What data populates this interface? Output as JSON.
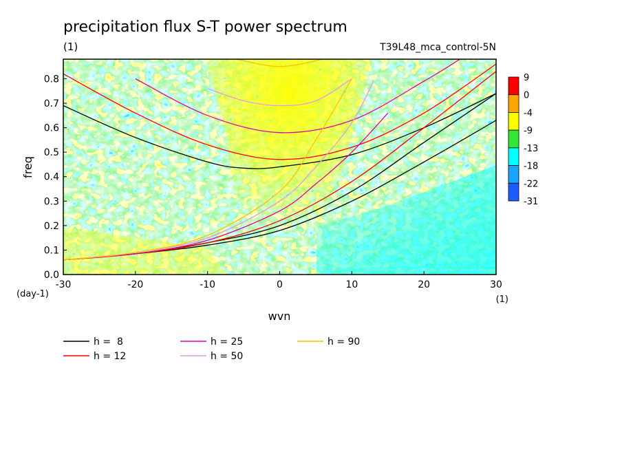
{
  "chart_data": {
    "type": "heatmap",
    "title": "precipitation flux S-T power spectrum",
    "units_label": "(1)",
    "subtitle": "T39L48_mca_control-5N",
    "xlabel": "wvn",
    "ylabel": "freq",
    "x_unit_label": "(1)",
    "y_unit_label": "(day-1)",
    "xlim": [
      -30,
      30
    ],
    "ylim": [
      0,
      0.88
    ],
    "xticks": [
      "-30",
      "-20",
      "-10",
      "0",
      "10",
      "20",
      "30"
    ],
    "yticks": [
      "0.0",
      "0.1",
      "0.2",
      "0.3",
      "0.4",
      "0.5",
      "0.6",
      "0.7",
      "0.8"
    ],
    "colorbar": {
      "labels": [
        "9",
        "0",
        "-4",
        "-9",
        "-13",
        "-18",
        "-22",
        "-31"
      ],
      "colors": [
        "#ff0000",
        "#ffa500",
        "#ffff00",
        "#33e633",
        "#00ffff",
        "#1aa3ff",
        "#1a5cff"
      ]
    },
    "legend": [
      {
        "label": "h =  8",
        "color": "#000000"
      },
      {
        "label": "h = 12",
        "color": "#ff0000"
      },
      {
        "label": "h = 25",
        "color": "#e000a0"
      },
      {
        "label": "h = 50",
        "color": "#d8a0e0"
      },
      {
        "label": "h = 90",
        "color": "#ffc000"
      }
    ],
    "dispersion_curves": [
      {
        "name": "h =  8",
        "color": "#000000",
        "branch": "low",
        "x": [
          -30,
          -20,
          -10,
          0,
          10,
          20,
          30
        ],
        "y": [
          0.06,
          0.085,
          0.12,
          0.18,
          0.3,
          0.46,
          0.63
        ]
      },
      {
        "name": "h =  8",
        "color": "#000000",
        "branch": "mid",
        "x": [
          -30,
          -20,
          -10,
          0,
          10,
          20,
          30
        ],
        "y": [
          0.06,
          0.085,
          0.13,
          0.2,
          0.34,
          0.54,
          0.74
        ]
      },
      {
        "name": "h =  8",
        "color": "#000000",
        "branch": "high",
        "x": [
          -30,
          -20,
          -10,
          -5,
          0,
          10,
          20,
          30
        ],
        "y": [
          0.69,
          0.56,
          0.46,
          0.435,
          0.44,
          0.49,
          0.6,
          0.74
        ]
      },
      {
        "name": "h = 12",
        "color": "#ff0000",
        "branch": "low",
        "x": [
          -30,
          -20,
          -10,
          0,
          10,
          20,
          30
        ],
        "y": [
          0.06,
          0.085,
          0.13,
          0.22,
          0.38,
          0.6,
          0.83
        ]
      },
      {
        "name": "h = 12",
        "color": "#ff0000",
        "branch": "high",
        "x": [
          -30,
          -20,
          -10,
          0,
          10,
          20,
          30
        ],
        "y": [
          0.82,
          0.66,
          0.53,
          0.47,
          0.52,
          0.66,
          0.86
        ]
      },
      {
        "name": "h = 25",
        "color": "#e000a0",
        "branch": "low",
        "x": [
          -30,
          -20,
          -10,
          0,
          5,
          10,
          15
        ],
        "y": [
          0.06,
          0.085,
          0.14,
          0.26,
          0.37,
          0.5,
          0.66
        ]
      },
      {
        "name": "h = 25",
        "color": "#e000a0",
        "branch": "high",
        "x": [
          -20,
          -10,
          0,
          10,
          20,
          25
        ],
        "y": [
          0.8,
          0.65,
          0.58,
          0.63,
          0.79,
          0.88
        ]
      },
      {
        "name": "h = 50",
        "color": "#d8a0e0",
        "branch": "low",
        "x": [
          -30,
          -20,
          -10,
          0,
          5,
          10,
          13
        ],
        "y": [
          0.06,
          0.09,
          0.15,
          0.3,
          0.44,
          0.62,
          0.79
        ]
      },
      {
        "name": "h = 50",
        "color": "#d8a0e0",
        "branch": "high",
        "x": [
          -10,
          -5,
          0,
          5,
          10
        ],
        "y": [
          0.76,
          0.71,
          0.69,
          0.71,
          0.8
        ]
      },
      {
        "name": "h = 90",
        "color": "#ffc000",
        "branch": "low",
        "x": [
          -30,
          -20,
          -10,
          0,
          5,
          10
        ],
        "y": [
          0.06,
          0.09,
          0.16,
          0.34,
          0.55,
          0.8
        ]
      },
      {
        "name": "h = 90",
        "color": "#ffc000",
        "branch": "high",
        "x": [
          -6,
          0,
          6
        ],
        "y": [
          0.88,
          0.85,
          0.88
        ]
      }
    ],
    "grid": false
  }
}
